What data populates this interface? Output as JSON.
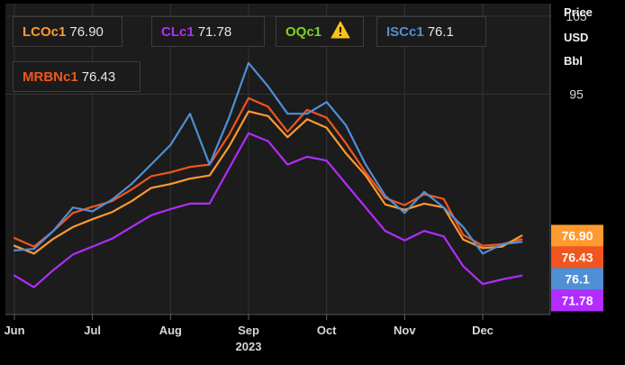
{
  "legend": [
    {
      "ric": "LCOc1",
      "value": "76.90",
      "color": "#ff9a2e"
    },
    {
      "ric": "CLc1",
      "value": "71.78",
      "color": "#b22cff"
    },
    {
      "ric": "OQc1",
      "value": "",
      "color": "#7ed321",
      "icon": "warning-icon"
    },
    {
      "ric": "ISCc1",
      "value": "76.1",
      "color": "#4f8fd6"
    },
    {
      "ric": "MRBNc1",
      "value": "76.43",
      "color": "#f0561e"
    }
  ],
  "axis_header": {
    "line1": "Price",
    "line2": "USD",
    "line3": "Bbl"
  },
  "chart_data": {
    "type": "line",
    "x_tick_labels": [
      "Jun",
      "Jul",
      "Aug",
      "Sep",
      "Oct",
      "Nov",
      "Dec"
    ],
    "x_year_label": "2023",
    "y_tick_labels": [
      "105",
      "95"
    ],
    "y_ticks": [
      105,
      95
    ],
    "ylim": [
      66.8,
      106.6
    ],
    "xlim": [
      0,
      6.75
    ],
    "grid": true,
    "series": [
      {
        "name": "MRBNc1",
        "color": "#f0561e",
        "last_label": "76.43",
        "x": [
          0,
          0.25,
          0.5,
          0.75,
          1.0,
          1.25,
          1.5,
          1.75,
          2.0,
          2.25,
          2.5,
          2.75,
          3.0,
          3.25,
          3.5,
          3.75,
          4.0,
          4.25,
          4.5,
          4.75,
          5.0,
          5.25,
          5.5,
          5.75,
          6.0,
          6.25,
          6.5
        ],
        "y": [
          76.6,
          75.5,
          77.5,
          79.8,
          80.6,
          81.3,
          82.8,
          84.5,
          85.0,
          85.7,
          86.0,
          89.8,
          94.5,
          93.4,
          90.2,
          93.0,
          92.0,
          88.7,
          85.0,
          81.7,
          80.8,
          82.2,
          81.6,
          77.0,
          75.6,
          75.8,
          76.43
        ]
      },
      {
        "name": "LCOc1",
        "color": "#ff9a2e",
        "last_label": "76.90",
        "x": [
          0,
          0.25,
          0.5,
          0.75,
          1.0,
          1.25,
          1.5,
          1.75,
          2.0,
          2.25,
          2.5,
          2.75,
          3.0,
          3.25,
          3.5,
          3.75,
          4.0,
          4.25,
          4.5,
          4.75,
          5.0,
          5.25,
          5.5,
          5.75,
          6.0,
          6.25,
          6.5
        ],
        "y": [
          75.6,
          74.6,
          76.5,
          78.0,
          79.0,
          79.9,
          81.3,
          83.0,
          83.5,
          84.2,
          84.6,
          88.3,
          92.8,
          92.2,
          89.5,
          91.8,
          90.7,
          87.4,
          84.6,
          80.9,
          80.2,
          81.0,
          80.5,
          76.4,
          75.3,
          75.5,
          76.9
        ]
      },
      {
        "name": "ISCc1",
        "color": "#4f8fd6",
        "last_label": "76.1",
        "x": [
          0,
          0.25,
          0.5,
          0.75,
          1.0,
          1.25,
          1.5,
          1.75,
          2.0,
          2.25,
          2.5,
          2.75,
          3.0,
          3.25,
          3.5,
          3.75,
          4.0,
          4.25,
          4.5,
          4.75,
          5.0,
          5.25,
          5.5,
          5.75,
          6.0,
          6.25,
          6.5
        ],
        "y": [
          75.0,
          75.2,
          77.5,
          80.5,
          80.0,
          81.5,
          83.5,
          86.0,
          88.5,
          92.5,
          86.0,
          92.0,
          99.0,
          96.0,
          92.5,
          92.5,
          94.0,
          91.0,
          86.0,
          82.0,
          79.8,
          82.5,
          80.5,
          78.0,
          74.6,
          75.8,
          76.1
        ]
      },
      {
        "name": "CLc1",
        "color": "#b22cff",
        "last_label": "71.78",
        "x": [
          0,
          0.25,
          0.5,
          0.75,
          1.0,
          1.25,
          1.5,
          1.75,
          2.0,
          2.25,
          2.5,
          2.75,
          3.0,
          3.25,
          3.5,
          3.75,
          4.0,
          4.25,
          4.5,
          4.75,
          5.0,
          5.25,
          5.5,
          5.75,
          6.0,
          6.25,
          6.5
        ],
        "y": [
          71.8,
          70.3,
          72.5,
          74.5,
          75.5,
          76.5,
          78.0,
          79.5,
          80.3,
          81.0,
          81.0,
          85.5,
          90.0,
          89.0,
          86.0,
          87.0,
          86.5,
          83.5,
          80.5,
          77.5,
          76.3,
          77.5,
          76.8,
          73.0,
          70.7,
          71.3,
          71.78
        ]
      }
    ]
  }
}
